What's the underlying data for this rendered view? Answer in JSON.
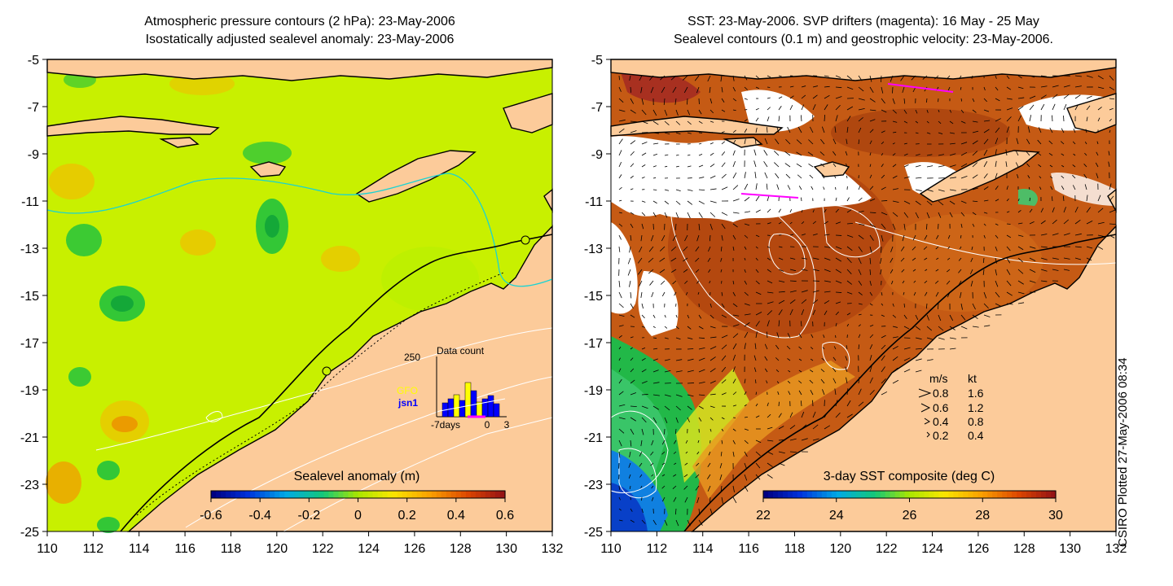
{
  "left_panel": {
    "title_line1": "Atmospheric pressure contours (2 hPa): 23-May-2006",
    "title_line2": "Isostatically adjusted sealevel anomaly: 23-May-2006",
    "colorbar_label": "Sealevel anomaly (m)",
    "colorbar_ticks": [
      "-0.6",
      "-0.4",
      "-0.2",
      "0",
      "0.2",
      "0.4",
      "0.6"
    ],
    "colorbar_range": [
      -0.6,
      0.6
    ],
    "inset": {
      "title": "Data count",
      "ymax_label": "250",
      "x_labels": [
        "-7days",
        "0",
        "3"
      ],
      "legend": [
        {
          "name": "GFO",
          "color": "#ffff00"
        },
        {
          "name": "jsn1",
          "color": "#0000ff"
        }
      ]
    }
  },
  "right_panel": {
    "title_line1": "SST: 23-May-2006. SVP drifters (magenta): 16 May - 25 May",
    "title_line2": "Sealevel contours (0.1 m) and geostrophic velocity: 23-May-2006.",
    "colorbar_label": "3-day SST composite (deg C)",
    "colorbar_ticks": [
      "22",
      "24",
      "26",
      "28",
      "30"
    ],
    "colorbar_range": [
      22,
      30
    ],
    "vector_legend": {
      "header_ms": "m/s",
      "header_kt": "kt",
      "rows": [
        {
          "ms": "0.8",
          "kt": "1.6"
        },
        {
          "ms": "0.6",
          "kt": "1.2"
        },
        {
          "ms": "0.4",
          "kt": "0.8"
        },
        {
          "ms": "0.2",
          "kt": "0.4"
        }
      ]
    }
  },
  "axes": {
    "x_ticks": [
      "110",
      "112",
      "114",
      "116",
      "118",
      "120",
      "122",
      "124",
      "126",
      "128",
      "130",
      "132"
    ],
    "y_ticks": [
      "-5",
      "-7",
      "-9",
      "-11",
      "-13",
      "-15",
      "-17",
      "-19",
      "-21",
      "-23",
      "-25"
    ],
    "lon_range": [
      110,
      132
    ],
    "lat_range": [
      -25,
      -5
    ]
  },
  "credit": "CSIRO Plotted 27-May-2006 08:34",
  "colors": {
    "land": "#fccb9a",
    "sla_background": "#c8f000",
    "sst_warm": "#b8440e",
    "sst_mid": "#d77a1e",
    "contour_white": "#ffffff",
    "contour_cyan": "#19d3d3"
  }
}
